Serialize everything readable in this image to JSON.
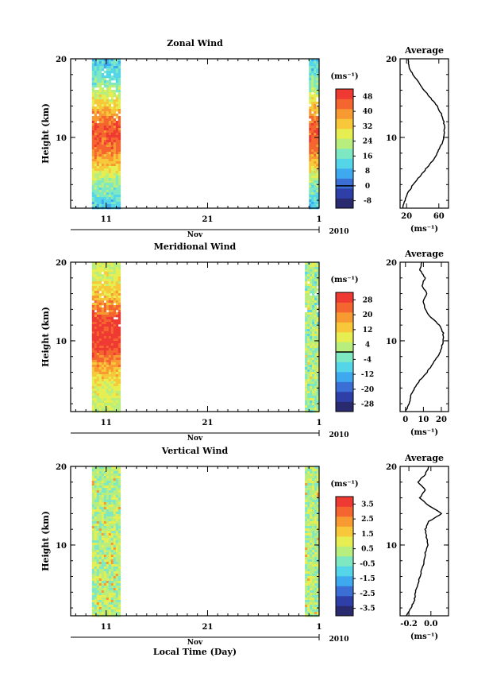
{
  "chart_data": [
    {
      "type": "heatmap",
      "title": "Zonal Wind",
      "ylabel": "Height (km)",
      "x_ticks": [
        "11",
        "21",
        "1"
      ],
      "month_label": "Nov",
      "year_label": "2010",
      "y_ticks": [
        "20",
        "10"
      ],
      "ylim": [
        1,
        20
      ],
      "colorbar": {
        "unit": "(ms⁻¹)",
        "ticks": [
          "48",
          "40",
          "32",
          "24",
          "16",
          "8",
          "0",
          "-8"
        ],
        "range": [
          -12,
          52
        ],
        "zero_line": 0
      },
      "data_blocks": [
        {
          "x": [
            9.6,
            12.2
          ],
          "y": [
            1,
            20
          ]
        },
        {
          "x": [
            31.0,
            31.9
          ],
          "y": [
            1,
            20
          ]
        }
      ],
      "profile": {
        "title": "Average",
        "x_ticks": [
          "20",
          "60"
        ],
        "x_tick_values": [
          20,
          60
        ],
        "xlim": [
          12,
          72
        ],
        "xlabel": "(ms⁻¹)",
        "y_ticks": [
          "20",
          "10"
        ],
        "height": [
          1,
          2,
          3,
          4,
          5,
          6,
          7,
          8,
          9,
          10,
          11,
          12,
          13,
          14,
          15,
          16,
          17,
          18,
          19,
          20
        ],
        "values": [
          15,
          18,
          22,
          28,
          36,
          44,
          52,
          58,
          63,
          66,
          67,
          66,
          63,
          58,
          50,
          42,
          35,
          28,
          23,
          22
        ]
      }
    },
    {
      "type": "heatmap",
      "title": "Meridional Wind",
      "ylabel": "Height (km)",
      "x_ticks": [
        "11",
        "21",
        "1"
      ],
      "month_label": "Nov",
      "year_label": "2010",
      "y_ticks": [
        "20",
        "10"
      ],
      "ylim": [
        1,
        20
      ],
      "colorbar": {
        "unit": "(ms⁻¹)",
        "ticks": [
          "28",
          "20",
          "12",
          "4",
          "-4",
          "-12",
          "-20",
          "-28"
        ],
        "range": [
          -32,
          32
        ],
        "zero_line": 0
      },
      "data_blocks": [
        {
          "x": [
            9.6,
            12.2
          ],
          "y": [
            1,
            20
          ]
        },
        {
          "x": [
            30.6,
            31.9
          ],
          "y": [
            1,
            20
          ]
        }
      ],
      "profile": {
        "title": "Average",
        "x_ticks": [
          "0",
          "10",
          "20"
        ],
        "x_tick_values": [
          0,
          10,
          20
        ],
        "xlim": [
          -3,
          24
        ],
        "xlabel": "(ms⁻¹)",
        "y_ticks": [
          "20",
          "10"
        ],
        "height": [
          1,
          2,
          3,
          4,
          5,
          6,
          7,
          8,
          9,
          10,
          11,
          12,
          13,
          14,
          15,
          16,
          17,
          18,
          19,
          20
        ],
        "values": [
          0,
          2,
          3,
          5,
          8,
          12,
          15,
          18,
          20,
          21,
          21,
          19,
          14,
          11,
          10,
          12,
          9,
          11,
          8,
          9
        ]
      }
    },
    {
      "type": "heatmap",
      "title": "Vertical Wind",
      "xlabel": "Local Time (Day)",
      "ylabel": "Height (km)",
      "x_ticks": [
        "11",
        "21",
        "1"
      ],
      "month_label": "Nov",
      "year_label": "2010",
      "y_ticks": [
        "20",
        "10"
      ],
      "ylim": [
        1,
        20
      ],
      "colorbar": {
        "unit": "(ms⁻¹)",
        "ticks": [
          "3.5",
          "2.5",
          "1.5",
          "0.5",
          "-0.5",
          "-1.5",
          "-2.5",
          "-3.5"
        ],
        "range": [
          -4,
          4
        ],
        "zero_line": null
      },
      "data_blocks": [
        {
          "x": [
            9.6,
            12.2
          ],
          "y": [
            1,
            20
          ]
        },
        {
          "x": [
            30.6,
            31.9
          ],
          "y": [
            1,
            20
          ]
        }
      ],
      "profile": {
        "title": "Average",
        "x_ticks": [
          "-0.2",
          "0.0"
        ],
        "x_tick_values": [
          -0.2,
          0.0
        ],
        "xlim": [
          -0.28,
          0.16
        ],
        "xlabel": "(ms⁻¹)",
        "y_ticks": [
          "20",
          "10"
        ],
        "height": [
          1,
          2,
          3,
          4,
          5,
          6,
          7,
          8,
          9,
          10,
          11,
          12,
          13,
          14,
          15,
          16,
          17,
          18,
          19,
          20
        ],
        "values": [
          -0.22,
          -0.18,
          -0.15,
          -0.14,
          -0.12,
          -0.1,
          -0.08,
          -0.06,
          -0.05,
          -0.03,
          -0.04,
          -0.05,
          -0.02,
          0.1,
          -0.02,
          -0.1,
          -0.05,
          -0.12,
          -0.05,
          -0.02
        ]
      }
    }
  ]
}
